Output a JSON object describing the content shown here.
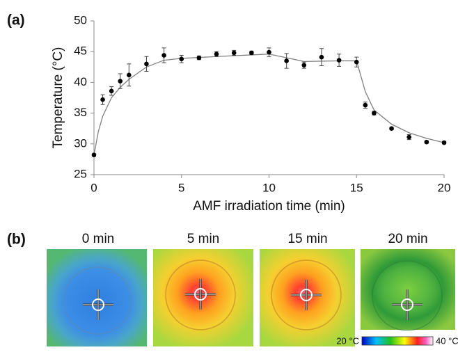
{
  "chart_data": {
    "type": "scatter",
    "panel_label": "(a)",
    "xlabel": "AMF irradiation time (min)",
    "ylabel": "Temperature (°C)",
    "xlim": [
      0,
      20
    ],
    "xticks": [
      0,
      5,
      10,
      15,
      20
    ],
    "ylim": [
      25,
      50
    ],
    "yticks": [
      25,
      30,
      35,
      40,
      45,
      50
    ],
    "grid": false,
    "series": [
      {
        "type": "scatter",
        "color": "#000000",
        "x": [
          0,
          0.5,
          1,
          1.5,
          2,
          3,
          4,
          5,
          6,
          7,
          8,
          9,
          10,
          11,
          12,
          13,
          14,
          15,
          15.5,
          16,
          17,
          18,
          19,
          20
        ],
        "values": [
          28.2,
          37.2,
          38.6,
          40.2,
          41.2,
          43.0,
          44.4,
          43.8,
          44.0,
          44.6,
          44.8,
          44.8,
          44.9,
          43.5,
          42.8,
          44.1,
          43.6,
          43.3,
          36.3,
          35.0,
          32.5,
          31.1,
          30.3,
          30.2
        ],
        "errors": [
          0.2,
          0.8,
          0.7,
          1.2,
          1.8,
          1.2,
          1.2,
          0.6,
          0.3,
          0.4,
          0.4,
          0.3,
          0.7,
          1.2,
          0.5,
          1.4,
          1.0,
          0.8,
          0.5,
          0.3,
          0.2,
          0.4,
          0.2,
          0.2
        ]
      },
      {
        "type": "line",
        "color": "#808080",
        "x": [
          0,
          0.25,
          0.5,
          1,
          1.5,
          2,
          3,
          4,
          5,
          7,
          10,
          11,
          12,
          14,
          15,
          15.25,
          15.5,
          16,
          17,
          18,
          19,
          20
        ],
        "values": [
          28.2,
          32.0,
          34.5,
          37.5,
          39.2,
          40.5,
          42.5,
          43.6,
          43.9,
          44.2,
          44.6,
          44.0,
          43.4,
          43.5,
          43.5,
          41.0,
          38.5,
          35.5,
          33.2,
          31.8,
          30.9,
          30.2
        ]
      }
    ]
  },
  "panel_b": {
    "panel_label": "(b)",
    "images": [
      {
        "label": "0 min"
      },
      {
        "label": "5 min"
      },
      {
        "label": "15 min"
      },
      {
        "label": "20 min"
      }
    ],
    "colorbar": {
      "min_label": "20 °C",
      "max_label": "40 °C"
    }
  }
}
